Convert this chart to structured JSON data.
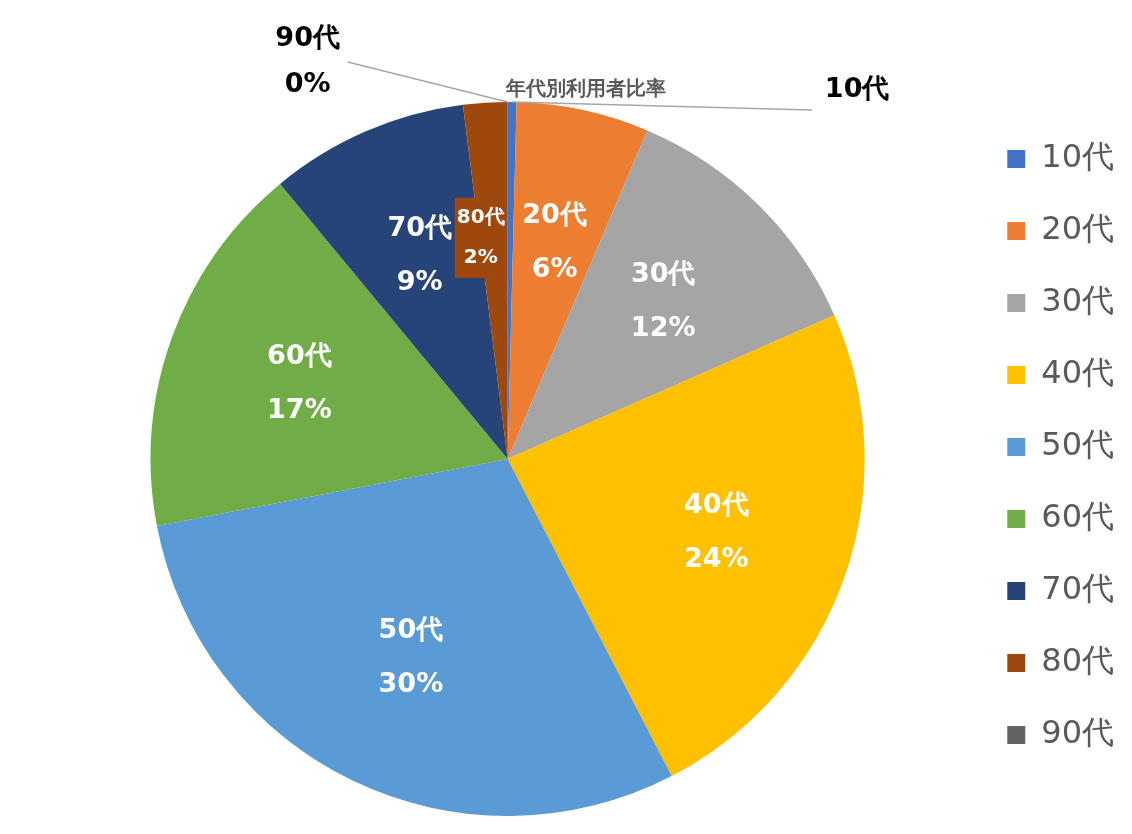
{
  "chart_data": {
    "type": "pie",
    "title": "年代別利用者比率",
    "categories": [
      "10代",
      "20代",
      "30代",
      "40代",
      "50代",
      "60代",
      "70代",
      "80代",
      "90代"
    ],
    "values": [
      0.4,
      6,
      12,
      24,
      29.6,
      17,
      9,
      2,
      0
    ],
    "value_labels": [
      null,
      "6%",
      "12%",
      "24%",
      "30%",
      "17%",
      "9%",
      "2%",
      "0%"
    ],
    "colors": [
      "#4472c4",
      "#ed7d31",
      "#a5a5a5",
      "#ffc000",
      "#5b9bd5",
      "#70ad47",
      "#264478",
      "#9e480e",
      "#636363"
    ],
    "legend": "right"
  }
}
